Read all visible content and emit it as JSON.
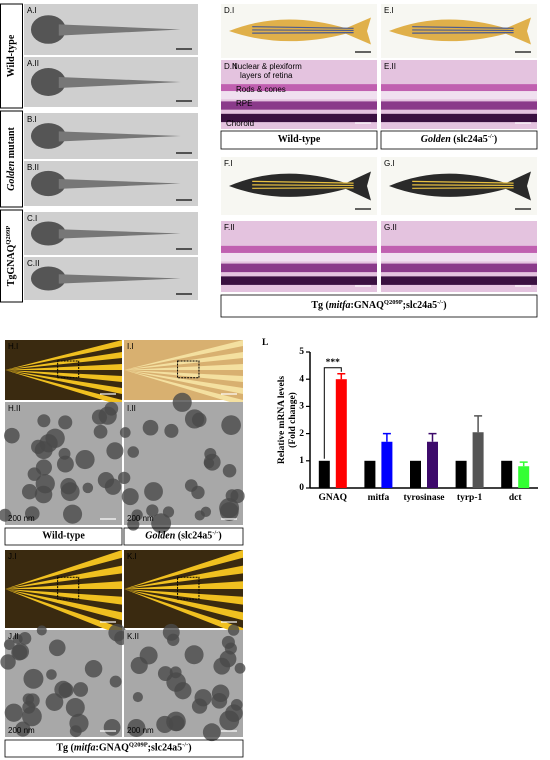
{
  "vertical_labels": [
    [
      {
        "text": "Wild-type"
      }
    ],
    [
      {
        "text": "Golden",
        "italic": true
      },
      {
        "text": " mutant"
      }
    ],
    [
      {
        "text": "TgGNAQ"
      },
      {
        "text": "Q209P",
        "sup": true
      }
    ]
  ],
  "panel_labels": [
    "A.I",
    "A.II",
    "B.I",
    "B.II",
    "C.I",
    "C.II",
    "D.I",
    "D.II",
    "E.I",
    "E.II",
    "F.I",
    "F.II",
    "G.I",
    "G.II",
    "H.I",
    "I.I",
    "H.II",
    "I.II",
    "J.I",
    "K.I",
    "J.II",
    "K.II"
  ],
  "captions": [
    [
      {
        "text": "Wild-type"
      }
    ],
    [
      {
        "text": "Golden",
        "italic": true
      },
      {
        "text": " (slc24a5"
      },
      {
        "text": "-/-",
        "sup": true
      },
      {
        "text": ")"
      }
    ],
    [
      {
        "text": "Tg ("
      },
      {
        "text": "mitfa",
        "italic": true
      },
      {
        "text": ":GNAQ"
      },
      {
        "text": "Q209P",
        "sup": true
      },
      {
        "text": ";slc24a5"
      },
      {
        "text": "-/-",
        "sup": true
      },
      {
        "text": ")"
      }
    ],
    [
      {
        "text": "Wild-type"
      }
    ],
    [
      {
        "text": "Golden",
        "italic": true
      },
      {
        "text": " (slc24a5"
      },
      {
        "text": "-/-",
        "sup": true
      },
      {
        "text": ")"
      }
    ],
    [
      {
        "text": "Tg ("
      },
      {
        "text": "mitfa",
        "italic": true
      },
      {
        "text": ":GNAQ"
      },
      {
        "text": "Q209P",
        "sup": true
      },
      {
        "text": ";slc24a5"
      },
      {
        "text": "-/-",
        "sup": true
      },
      {
        "text": ")"
      }
    ]
  ],
  "retina_annotations": [
    "Nuclear & plexiform",
    "layers of retina",
    "Rods & cones",
    "RPE",
    "Choroid"
  ],
  "scale_label": "200 nm",
  "chart_data": {
    "type": "bar",
    "panel_label": "L",
    "y_label": [
      "Relative mRNA levels",
      "(Fold change)"
    ],
    "categories": [
      "GNAQ",
      "mitfa",
      "tyrosinase",
      "tyrp-1",
      "dct"
    ],
    "ylim": [
      0,
      5
    ],
    "yticks": [
      0,
      1,
      2,
      3,
      4,
      5
    ],
    "series": [
      {
        "color": "#000000",
        "values": [
          1,
          1,
          1,
          1,
          1
        ]
      },
      {
        "colors": [
          "#ff0000",
          "#0000ff",
          "#3d0a6b",
          "#555555",
          "#33ff33"
        ],
        "values": [
          4.0,
          1.7,
          1.7,
          2.05,
          0.8
        ],
        "errors": [
          0.2,
          0.3,
          0.3,
          0.6,
          0.15
        ]
      }
    ],
    "annotations": [
      {
        "text": "***",
        "category": 0
      }
    ]
  }
}
